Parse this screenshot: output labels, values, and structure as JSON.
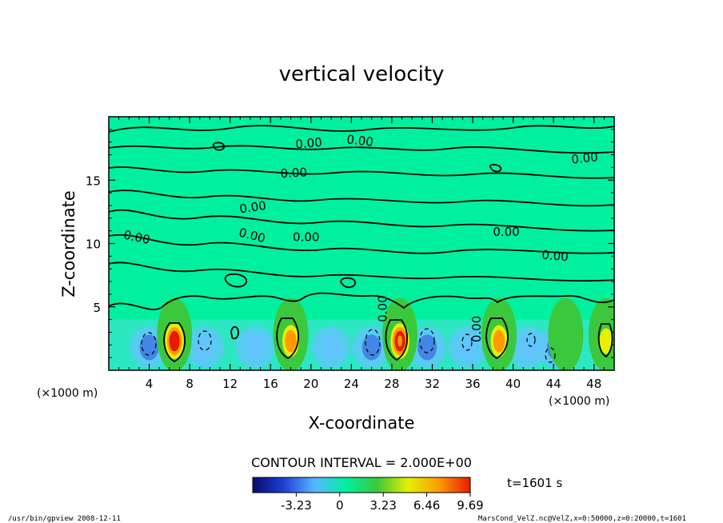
{
  "chart_data": {
    "type": "heatmap",
    "title": "vertical velocity",
    "xlabel": "X-coordinate",
    "ylabel": "Z-coordinate",
    "x_unit_left": "(×1000 m)",
    "x_unit_right": "(×1000 m)",
    "xlim": [
      0,
      50
    ],
    "ylim": [
      0,
      20
    ],
    "x_ticks": [
      "4",
      "8",
      "12",
      "16",
      "20",
      "24",
      "28",
      "32",
      "36",
      "40",
      "44",
      "48"
    ],
    "y_ticks": [
      "5",
      "10",
      "15"
    ],
    "contour_label": "0.00",
    "contour_interval_text": "CONTOUR INTERVAL = 2.000E+00",
    "time_text": "t=1601 s",
    "colorbar": {
      "ticks": [
        "-3.23",
        "0",
        "3.23",
        "6.46",
        "9.69"
      ],
      "range": [
        -6.46,
        9.69
      ],
      "colors": [
        "#0a0a6e",
        "#1f3fd6",
        "#57b8ff",
        "#00f0a0",
        "#3cc83c",
        "#e6f000",
        "#ff9a00",
        "#e81a00"
      ]
    },
    "updrafts": [
      {
        "x": 6.5,
        "peak": 9.5
      },
      {
        "x": 18.0,
        "peak": 7.5
      },
      {
        "x": 28.8,
        "peak": 8.5
      },
      {
        "x": 38.6,
        "peak": 7.8
      },
      {
        "x": 45.2,
        "peak": 3.5
      },
      {
        "x": 49.2,
        "peak": 5.5
      }
    ],
    "downdrafts": [
      {
        "x": 4.0,
        "depth": -3.0
      },
      {
        "x": 9.5,
        "depth": -2.5
      },
      {
        "x": 14.5,
        "depth": -1.5
      },
      {
        "x": 22.0,
        "depth": -1.8
      },
      {
        "x": 26.0,
        "depth": -3.0
      },
      {
        "x": 31.5,
        "depth": -3.0
      },
      {
        "x": 35.5,
        "depth": -2.5
      },
      {
        "x": 41.5,
        "depth": -2.0
      },
      {
        "x": 44.3,
        "depth": -3.2
      }
    ]
  },
  "footer": {
    "left_text": "/usr/bin/gpview  2008-12-11",
    "right_text": "MarsCond_VelZ.nc@VelZ,x=0:50000,z=0:20000,t=1601"
  }
}
